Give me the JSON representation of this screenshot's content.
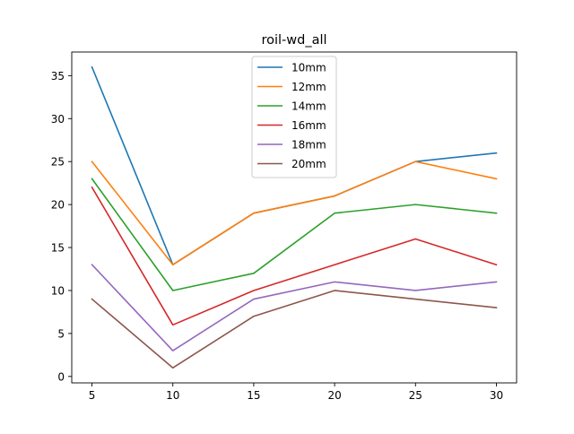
{
  "chart_data": {
    "type": "line",
    "title": "roil-wd_all",
    "xlabel": "",
    "ylabel": "",
    "x": [
      5,
      10,
      15,
      20,
      25,
      30
    ],
    "xlim": [
      3.75,
      31.25
    ],
    "ylim": [
      -0.75,
      37.75
    ],
    "xticks": [
      5,
      10,
      15,
      20,
      25,
      30
    ],
    "yticks": [
      0,
      5,
      10,
      15,
      20,
      25,
      30,
      35
    ],
    "grid": false,
    "legend_position": "top-center",
    "series": [
      {
        "name": "10mm",
        "color": "#1f77b4",
        "values": [
          36,
          13,
          19,
          21,
          25,
          26
        ]
      },
      {
        "name": "12mm",
        "color": "#ff7f0e",
        "values": [
          25,
          13,
          19,
          21,
          25,
          23
        ]
      },
      {
        "name": "14mm",
        "color": "#2ca02c",
        "values": [
          23,
          10,
          12,
          19,
          20,
          19
        ]
      },
      {
        "name": "16mm",
        "color": "#d62728",
        "values": [
          22,
          6,
          10,
          13,
          16,
          13
        ]
      },
      {
        "name": "18mm",
        "color": "#9467bd",
        "values": [
          13,
          3,
          9,
          11,
          10,
          11
        ]
      },
      {
        "name": "20mm",
        "color": "#8c564b",
        "values": [
          9,
          1,
          7,
          10,
          9,
          8
        ]
      }
    ]
  }
}
